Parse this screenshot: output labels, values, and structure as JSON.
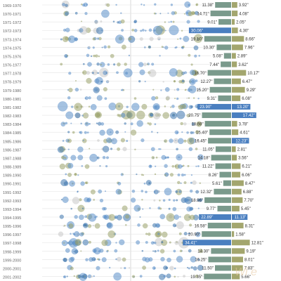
{
  "chart_data": {
    "type": "scatter",
    "title": "",
    "xlabel": "",
    "ylabel": "",
    "colors": {
      "blue": "#5b8fc9",
      "olive": "#9ba36b",
      "dark_blue": "#3d74ad",
      "grey": "#c8c8c8",
      "bar_a": "#7a9a8c",
      "bar_b": "#a3a66e",
      "highlight": "#4a7fc0"
    },
    "years": [
      "1969-1970",
      "1970-1971",
      "1971-1972",
      "1972-1973",
      "1973-1974",
      "1974-1975",
      "1975-1976",
      "1976-1977",
      "1977-1978",
      "1978-1979",
      "1979-1980",
      "1980-1981",
      "1981-1982",
      "1982-1983",
      "1983-1984",
      "1984-1985",
      "1985-1986",
      "1986-1987",
      "1987-1988",
      "1988-1989",
      "1989-1990",
      "1990-1991",
      "1991-1992",
      "1992-1993",
      "1993-1994",
      "1994-1995",
      "1995-1996",
      "1996-1997",
      "1997-1998",
      "1998-1999",
      "1999-2000",
      "2000-2001",
      "2001-2002"
    ],
    "series": [
      {
        "values": [
          "11.38\"",
          "14.71\"",
          "9.01\"",
          "30.06\"",
          "19.10\"",
          "10.30\"",
          "5.08\"",
          "7.44\"",
          "16.70\"",
          "12.27\"",
          "15.20\"",
          "9.31\"",
          "23.90\"",
          "20.75\"",
          "18.69\"",
          "15.40\"",
          "16.45\"",
          "11.05\"",
          "14.18\"",
          "11.22\"",
          "8.26\"",
          "5.61\"",
          "12.32\"",
          "18.96\"",
          "9.77\"",
          "22.89\"",
          "16.58\"",
          "20.90\"",
          "34.41\"",
          "14.30\"",
          "16.25\"",
          "11.50\"",
          "19.35\""
        ]
      },
      {
        "values": [
          "3.92\"",
          "4.08\"",
          "2.05\"",
          "4.30\"",
          "8.66\"",
          "7.96\"",
          "2.89\"",
          "3.62\"",
          "10.17\"",
          "6.47\"",
          "9.29\"",
          "6.08\"",
          "13.20\"",
          "17.42\"",
          "3.78\"",
          "4.61\"",
          "12.23\"",
          "2.81\"",
          "3.56\"",
          "6.21\"",
          "6.06\"",
          "8.47\"",
          "6.88\"",
          "7.70\"",
          "5.45\"",
          "11.13\"",
          "8.31\"",
          "1.58\"",
          "12.81\"",
          "9.19\"",
          "8.01\"",
          "7.83\"",
          "5.66\""
        ]
      }
    ],
    "highlight_left": [
      3,
      12,
      25,
      28
    ],
    "highlight_right": [
      12,
      13,
      16,
      25
    ],
    "watermark": "Wi    e"
  }
}
